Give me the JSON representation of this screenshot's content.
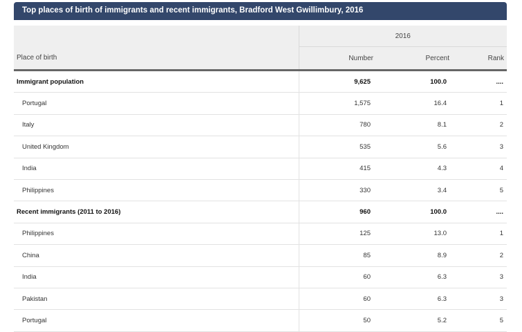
{
  "title": "Top places of birth of immigrants and recent immigrants,  Bradford West Gwillimbury, 2016",
  "year_header": "2016",
  "columns": {
    "place": "Place of birth",
    "number": "Number",
    "percent": "Percent",
    "rank": "Rank"
  },
  "rows": [
    {
      "place": "Immigrant population",
      "number": "9,625",
      "percent": "100.0",
      "rank": "...."
    },
    {
      "place": "Portugal",
      "number": "1,575",
      "percent": "16.4",
      "rank": "1"
    },
    {
      "place": "Italy",
      "number": "780",
      "percent": "8.1",
      "rank": "2"
    },
    {
      "place": "United Kingdom",
      "number": "535",
      "percent": "5.6",
      "rank": "3"
    },
    {
      "place": "India",
      "number": "415",
      "percent": "4.3",
      "rank": "4"
    },
    {
      "place": "Philippines",
      "number": "330",
      "percent": "3.4",
      "rank": "5"
    },
    {
      "place": "Recent immigrants (2011 to 2016)",
      "number": "960",
      "percent": "100.0",
      "rank": "...."
    },
    {
      "place": "Philippines",
      "number": "125",
      "percent": "13.0",
      "rank": "1"
    },
    {
      "place": "China",
      "number": "85",
      "percent": "8.9",
      "rank": "2"
    },
    {
      "place": "India",
      "number": "60",
      "percent": "6.3",
      "rank": "3"
    },
    {
      "place": "Pakistan",
      "number": "60",
      "percent": "6.3",
      "rank": "3"
    },
    {
      "place": "Portugal",
      "number": "50",
      "percent": "5.2",
      "rank": "5"
    }
  ]
}
